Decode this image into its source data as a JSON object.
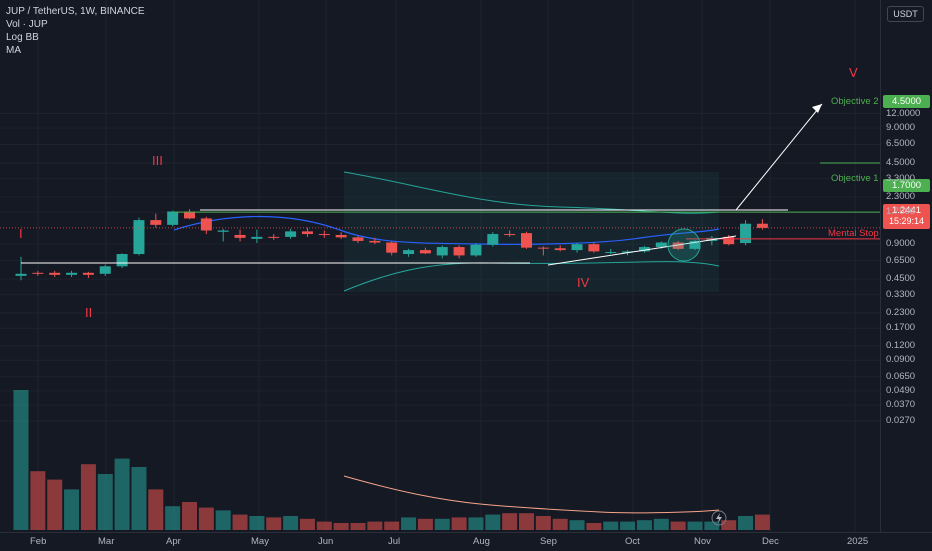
{
  "legend": {
    "symbol_line": "JUP / TetherUS, 1W, BINANCE",
    "indicators": [
      "Vol · JUP",
      "Log BB",
      "MA"
    ]
  },
  "currency_button": "USDT",
  "price_axis": [
    "12.0000",
    "9.0000",
    "6.5000",
    "4.5000",
    "3.3000",
    "2.3000",
    "1.7000",
    "1.2441",
    "0.9000",
    "0.6500",
    "0.4500",
    "0.3300",
    "0.2300",
    "0.1700",
    "0.1200",
    "0.0900",
    "0.0650",
    "0.0490",
    "0.0370",
    "0.0270"
  ],
  "price_tags": {
    "objective2_price": "4.5000",
    "objective1_price": "1.7000",
    "current_price": "1.2441",
    "countdown": "15:29:14"
  },
  "time_axis": [
    "Feb",
    "Mar",
    "Apr",
    "May",
    "Jun",
    "Jul",
    "Aug",
    "Sep",
    "Oct",
    "Nov",
    "Dec",
    "2025"
  ],
  "annotations": {
    "wave_1": "I",
    "wave_2": "II",
    "wave_3": "III",
    "wave_4": "IV",
    "wave_5": "V",
    "objective_2": "Objective 2",
    "objective_1": "Objective 1",
    "mental_stop": "Mental Stop"
  },
  "colors": {
    "up": "#26a69a",
    "down": "#ef5350",
    "objective": "#4caf50",
    "stop": "#f23645",
    "bb": "#26a69a",
    "ma": "#2962ff"
  },
  "chart_data": {
    "type": "candlestick",
    "symbol": "JUP / TetherUS",
    "interval": "1W",
    "exchange": "BINANCE",
    "scale": "log",
    "weeks": [
      {
        "o": 0.48,
        "h": 0.7,
        "l": 0.44,
        "c": 0.5
      },
      {
        "o": 0.51,
        "h": 0.53,
        "l": 0.48,
        "c": 0.5
      },
      {
        "o": 0.51,
        "h": 0.53,
        "l": 0.47,
        "c": 0.49
      },
      {
        "o": 0.49,
        "h": 0.53,
        "l": 0.47,
        "c": 0.51
      },
      {
        "o": 0.51,
        "h": 0.52,
        "l": 0.46,
        "c": 0.49
      },
      {
        "o": 0.5,
        "h": 0.6,
        "l": 0.48,
        "c": 0.58
      },
      {
        "o": 0.58,
        "h": 0.75,
        "l": 0.56,
        "c": 0.74
      },
      {
        "o": 0.74,
        "h": 1.52,
        "l": 0.72,
        "c": 1.45
      },
      {
        "o": 1.45,
        "h": 1.65,
        "l": 1.25,
        "c": 1.32
      },
      {
        "o": 1.32,
        "h": 1.75,
        "l": 1.28,
        "c": 1.72
      },
      {
        "o": 1.72,
        "h": 1.8,
        "l": 1.48,
        "c": 1.5
      },
      {
        "o": 1.5,
        "h": 1.55,
        "l": 1.1,
        "c": 1.18
      },
      {
        "o": 1.15,
        "h": 1.22,
        "l": 0.95,
        "c": 1.18
      },
      {
        "o": 1.08,
        "h": 1.2,
        "l": 0.95,
        "c": 1.02
      },
      {
        "o": 1.0,
        "h": 1.2,
        "l": 0.92,
        "c": 1.04
      },
      {
        "o": 1.04,
        "h": 1.1,
        "l": 0.98,
        "c": 1.02
      },
      {
        "o": 1.04,
        "h": 1.22,
        "l": 1.0,
        "c": 1.16
      },
      {
        "o": 1.16,
        "h": 1.25,
        "l": 1.04,
        "c": 1.1
      },
      {
        "o": 1.1,
        "h": 1.18,
        "l": 1.02,
        "c": 1.08
      },
      {
        "o": 1.08,
        "h": 1.14,
        "l": 1.0,
        "c": 1.03
      },
      {
        "o": 1.03,
        "h": 1.06,
        "l": 0.92,
        "c": 0.96
      },
      {
        "o": 0.96,
        "h": 1.02,
        "l": 0.9,
        "c": 0.93
      },
      {
        "o": 0.93,
        "h": 0.95,
        "l": 0.72,
        "c": 0.76
      },
      {
        "o": 0.74,
        "h": 0.82,
        "l": 0.7,
        "c": 0.8
      },
      {
        "o": 0.8,
        "h": 0.84,
        "l": 0.74,
        "c": 0.75
      },
      {
        "o": 0.72,
        "h": 0.88,
        "l": 0.68,
        "c": 0.85
      },
      {
        "o": 0.85,
        "h": 0.88,
        "l": 0.68,
        "c": 0.72
      },
      {
        "o": 0.72,
        "h": 0.92,
        "l": 0.7,
        "c": 0.89
      },
      {
        "o": 0.89,
        "h": 1.14,
        "l": 0.86,
        "c": 1.1
      },
      {
        "o": 1.1,
        "h": 1.18,
        "l": 1.04,
        "c": 1.08
      },
      {
        "o": 1.12,
        "h": 1.15,
        "l": 0.82,
        "c": 0.84
      },
      {
        "o": 0.84,
        "h": 0.86,
        "l": 0.72,
        "c": 0.83
      },
      {
        "o": 0.83,
        "h": 0.88,
        "l": 0.78,
        "c": 0.8
      },
      {
        "o": 0.8,
        "h": 0.92,
        "l": 0.76,
        "c": 0.9
      },
      {
        "o": 0.9,
        "h": 0.93,
        "l": 0.76,
        "c": 0.78
      },
      {
        "o": 0.76,
        "h": 0.82,
        "l": 0.74,
        "c": 0.77
      },
      {
        "o": 0.76,
        "h": 0.8,
        "l": 0.72,
        "c": 0.78
      },
      {
        "o": 0.78,
        "h": 0.87,
        "l": 0.76,
        "c": 0.85
      },
      {
        "o": 0.85,
        "h": 0.95,
        "l": 0.82,
        "c": 0.93
      },
      {
        "o": 0.93,
        "h": 0.96,
        "l": 0.8,
        "c": 0.82
      },
      {
        "o": 0.82,
        "h": 0.98,
        "l": 0.8,
        "c": 0.96
      },
      {
        "o": 0.96,
        "h": 1.06,
        "l": 0.88,
        "c": 1.02
      },
      {
        "o": 1.04,
        "h": 1.08,
        "l": 0.88,
        "c": 0.9
      },
      {
        "o": 0.92,
        "h": 1.45,
        "l": 0.88,
        "c": 1.35
      },
      {
        "o": 1.35,
        "h": 1.48,
        "l": 1.2,
        "c": 1.2441
      }
    ],
    "volume": [
      1.0,
      0.42,
      0.36,
      0.29,
      0.47,
      0.4,
      0.51,
      0.45,
      0.29,
      0.17,
      0.2,
      0.16,
      0.14,
      0.11,
      0.1,
      0.09,
      0.1,
      0.08,
      0.06,
      0.05,
      0.05,
      0.06,
      0.06,
      0.09,
      0.08,
      0.08,
      0.09,
      0.09,
      0.11,
      0.12,
      0.12,
      0.1,
      0.08,
      0.07,
      0.05,
      0.06,
      0.06,
      0.07,
      0.08,
      0.06,
      0.06,
      0.06,
      0.07,
      0.1,
      0.11
    ],
    "levels": {
      "objective_2": 4.5,
      "objective_1": 1.7,
      "mental_stop": 1.0
    },
    "xlabel": "",
    "ylabel": "",
    "ylim": [
      0.025,
      14.0
    ]
  }
}
